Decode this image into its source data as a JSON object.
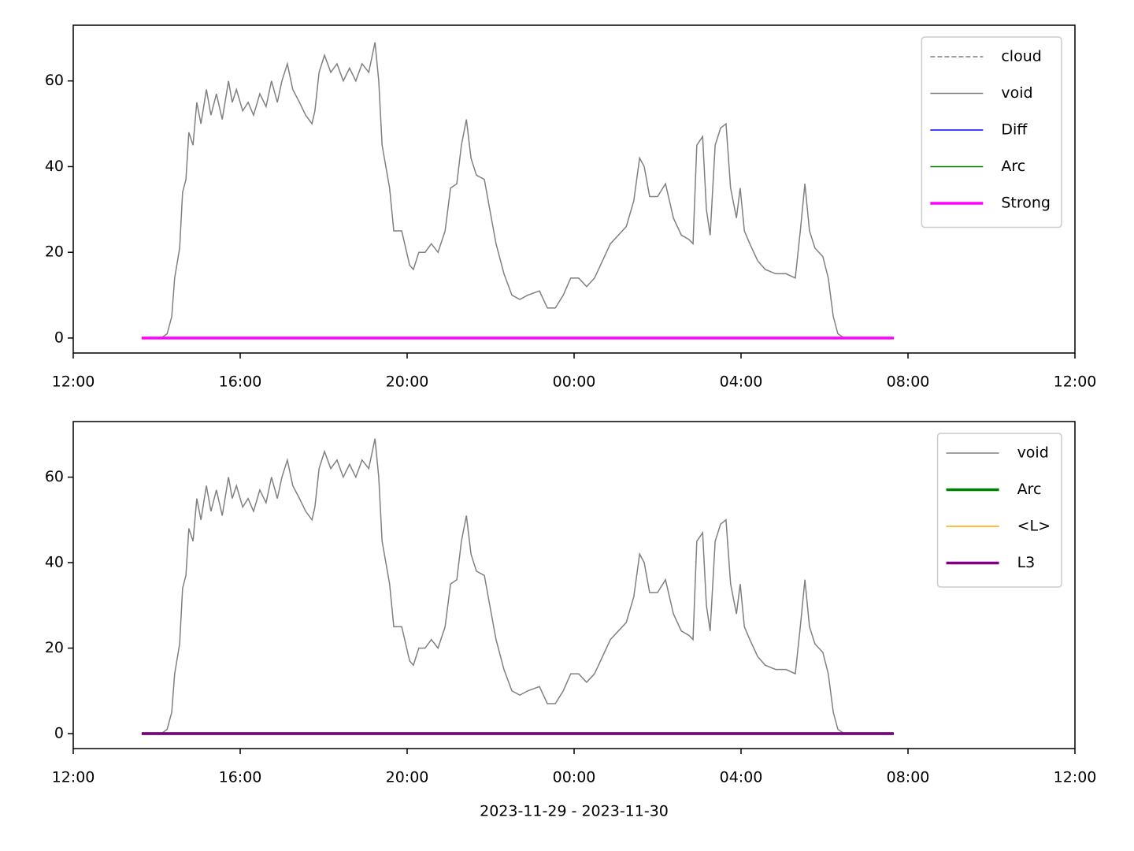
{
  "chart_data": [
    {
      "type": "line",
      "legend": "upper right",
      "ylim": [
        -3.5,
        73
      ],
      "yticks": [
        0,
        20,
        40,
        60
      ],
      "xlim": [
        0,
        24
      ],
      "xticks": [
        {
          "value": 0,
          "label": "12:00"
        },
        {
          "value": 4,
          "label": "16:00"
        },
        {
          "value": 8,
          "label": "20:00"
        },
        {
          "value": 12,
          "label": "00:00"
        },
        {
          "value": 16,
          "label": "04:00"
        },
        {
          "value": 20,
          "label": "08:00"
        },
        {
          "value": 24,
          "label": "12:00"
        }
      ],
      "series": [
        {
          "name": "cloud",
          "color": "#808080",
          "linestyle": "dashed",
          "linewidth": 1.5,
          "x": [
            1.64,
            19.66
          ],
          "values": [
            0,
            0
          ]
        },
        {
          "name": "void",
          "color": "#808080",
          "linestyle": "solid",
          "linewidth": 1.5,
          "x": [
            1.64,
            2.11,
            2.25,
            2.36,
            2.43,
            2.55,
            2.62,
            2.7,
            2.77,
            2.87,
            2.96,
            3.06,
            3.19,
            3.3,
            3.43,
            3.57,
            3.72,
            3.81,
            3.91,
            4.06,
            4.19,
            4.32,
            4.47,
            4.62,
            4.75,
            4.89,
            5.0,
            5.13,
            5.26,
            5.42,
            5.57,
            5.72,
            5.79,
            5.89,
            6.02,
            6.17,
            6.32,
            6.47,
            6.62,
            6.77,
            6.92,
            7.08,
            7.23,
            7.32,
            7.4,
            7.49,
            7.58,
            7.68,
            7.87,
            8.06,
            8.15,
            8.28,
            8.43,
            8.58,
            8.74,
            8.91,
            9.04,
            9.19,
            9.3,
            9.42,
            9.53,
            9.66,
            9.85,
            9.98,
            10.13,
            10.32,
            10.51,
            10.7,
            10.89,
            11.17,
            11.36,
            11.55,
            11.74,
            11.92,
            12.11,
            12.3,
            12.49,
            12.68,
            12.87,
            13.06,
            13.25,
            13.43,
            13.57,
            13.68,
            13.81,
            14.0,
            14.19,
            14.38,
            14.57,
            14.75,
            14.85,
            14.94,
            15.08,
            15.17,
            15.26,
            15.38,
            15.51,
            15.64,
            15.75,
            15.89,
            15.98,
            16.08,
            16.21,
            16.4,
            16.58,
            16.83,
            17.08,
            17.3,
            17.42,
            17.53,
            17.64,
            17.77,
            17.96,
            18.09,
            18.21,
            18.32,
            18.47,
            19.66
          ],
          "values": [
            0,
            0,
            1,
            5,
            14,
            21,
            34,
            37,
            48,
            45,
            55,
            50,
            58,
            52,
            57,
            51,
            60,
            55,
            58,
            53,
            55,
            52,
            57,
            54,
            60,
            55,
            60,
            64,
            58,
            55,
            52,
            50,
            53,
            62,
            66,
            62,
            64,
            60,
            63,
            60,
            64,
            62,
            69,
            60,
            45,
            40,
            35,
            25,
            25,
            17,
            16,
            20,
            20,
            22,
            20,
            25,
            35,
            36,
            45,
            51,
            42,
            38,
            37,
            30,
            22,
            15,
            10,
            9,
            10,
            11,
            7,
            7,
            10,
            14,
            14,
            12,
            14,
            18,
            22,
            24,
            26,
            32,
            42,
            40,
            33,
            33,
            36,
            28,
            24,
            23,
            22,
            45,
            47,
            30,
            24,
            45,
            49,
            50,
            35,
            28,
            35,
            25,
            22,
            18,
            16,
            15,
            15,
            14,
            25,
            36,
            25,
            21,
            19,
            14,
            5,
            1,
            0,
            0
          ]
        },
        {
          "name": "Diff",
          "color": "#0000ff",
          "linestyle": "solid",
          "linewidth": 1.5,
          "x": [
            1.64,
            19.66
          ],
          "values": [
            0,
            0
          ]
        },
        {
          "name": "Arc",
          "color": "#008000",
          "linestyle": "solid",
          "linewidth": 1.5,
          "x": [
            1.64,
            19.66
          ],
          "values": [
            0,
            0
          ]
        },
        {
          "name": "Strong",
          "color": "#ff00ff",
          "linestyle": "solid",
          "linewidth": 3.5,
          "x": [
            1.64,
            19.66
          ],
          "values": [
            0,
            0
          ]
        }
      ]
    },
    {
      "type": "line",
      "legend": "upper right",
      "ylim": [
        -3.5,
        73
      ],
      "yticks": [
        0,
        20,
        40,
        60
      ],
      "xlim": [
        0,
        24
      ],
      "xlabel": "2023-11-29 - 2023-11-30",
      "xticks": [
        {
          "value": 0,
          "label": "12:00"
        },
        {
          "value": 4,
          "label": "16:00"
        },
        {
          "value": 8,
          "label": "20:00"
        },
        {
          "value": 12,
          "label": "00:00"
        },
        {
          "value": 16,
          "label": "04:00"
        },
        {
          "value": 20,
          "label": "08:00"
        },
        {
          "value": 24,
          "label": "12:00"
        }
      ],
      "series": [
        {
          "name": "void",
          "color": "#808080",
          "linestyle": "solid",
          "linewidth": 1.5,
          "x": [
            1.64,
            2.11,
            2.25,
            2.36,
            2.43,
            2.55,
            2.62,
            2.7,
            2.77,
            2.87,
            2.96,
            3.06,
            3.19,
            3.3,
            3.43,
            3.57,
            3.72,
            3.81,
            3.91,
            4.06,
            4.19,
            4.32,
            4.47,
            4.62,
            4.75,
            4.89,
            5.0,
            5.13,
            5.26,
            5.42,
            5.57,
            5.72,
            5.79,
            5.89,
            6.02,
            6.17,
            6.32,
            6.47,
            6.62,
            6.77,
            6.92,
            7.08,
            7.23,
            7.32,
            7.4,
            7.49,
            7.58,
            7.68,
            7.87,
            8.06,
            8.15,
            8.28,
            8.43,
            8.58,
            8.74,
            8.91,
            9.04,
            9.19,
            9.3,
            9.42,
            9.53,
            9.66,
            9.85,
            9.98,
            10.13,
            10.32,
            10.51,
            10.7,
            10.89,
            11.17,
            11.36,
            11.55,
            11.74,
            11.92,
            12.11,
            12.3,
            12.49,
            12.68,
            12.87,
            13.06,
            13.25,
            13.43,
            13.57,
            13.68,
            13.81,
            14.0,
            14.19,
            14.38,
            14.57,
            14.75,
            14.85,
            14.94,
            15.08,
            15.17,
            15.26,
            15.38,
            15.51,
            15.64,
            15.75,
            15.89,
            15.98,
            16.08,
            16.21,
            16.4,
            16.58,
            16.83,
            17.08,
            17.3,
            17.42,
            17.53,
            17.64,
            17.77,
            17.96,
            18.09,
            18.21,
            18.32,
            18.47,
            19.66
          ],
          "values": [
            0,
            0,
            1,
            5,
            14,
            21,
            34,
            37,
            48,
            45,
            55,
            50,
            58,
            52,
            57,
            51,
            60,
            55,
            58,
            53,
            55,
            52,
            57,
            54,
            60,
            55,
            60,
            64,
            58,
            55,
            52,
            50,
            53,
            62,
            66,
            62,
            64,
            60,
            63,
            60,
            64,
            62,
            69,
            60,
            45,
            40,
            35,
            25,
            25,
            17,
            16,
            20,
            20,
            22,
            20,
            25,
            35,
            36,
            45,
            51,
            42,
            38,
            37,
            30,
            22,
            15,
            10,
            9,
            10,
            11,
            7,
            7,
            10,
            14,
            14,
            12,
            14,
            18,
            22,
            24,
            26,
            32,
            42,
            40,
            33,
            33,
            36,
            28,
            24,
            23,
            22,
            45,
            47,
            30,
            24,
            45,
            49,
            50,
            35,
            28,
            35,
            25,
            22,
            18,
            16,
            15,
            15,
            14,
            25,
            36,
            25,
            21,
            19,
            14,
            5,
            1,
            0,
            0
          ]
        },
        {
          "name": "Arc",
          "color": "#008000",
          "linestyle": "solid",
          "linewidth": 3.5,
          "x": [
            1.64,
            19.66
          ],
          "values": [
            0,
            0
          ]
        },
        {
          "name": "<L>",
          "color": "#ffa500",
          "linestyle": "solid",
          "linewidth": 1.5,
          "x": [
            1.64,
            19.66
          ],
          "values": [
            0,
            0
          ]
        },
        {
          "name": "L3",
          "color": "#800080",
          "linestyle": "solid",
          "linewidth": 3.5,
          "x": [
            1.64,
            19.66
          ],
          "values": [
            0,
            0
          ]
        }
      ]
    }
  ]
}
